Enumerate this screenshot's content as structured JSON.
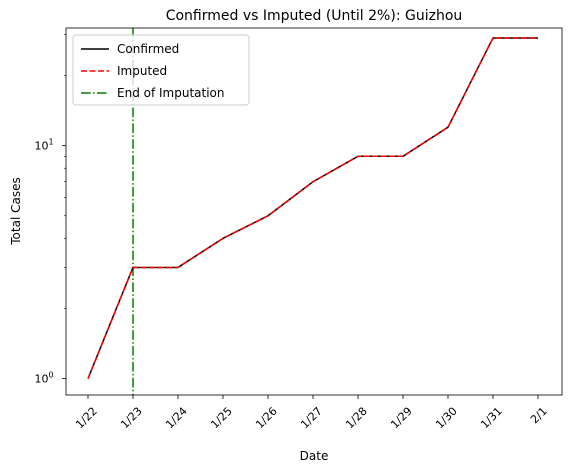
{
  "chart_data": {
    "type": "line",
    "title": "Confirmed vs Imputed (Until 2%): Guizhou",
    "xlabel": "Date",
    "ylabel": "Total Cases",
    "categories": [
      "1/22",
      "1/23",
      "1/24",
      "1/25",
      "1/26",
      "1/27",
      "1/28",
      "1/29",
      "1/30",
      "1/31",
      "2/1"
    ],
    "y_scale": "log",
    "ylim": [
      0.85,
      32
    ],
    "y_ticks": [
      {
        "value": 1,
        "base": "10",
        "exp": "0"
      },
      {
        "value": 10,
        "base": "10",
        "exp": "1"
      }
    ],
    "y_minor_ticks": [
      2,
      3,
      4,
      5,
      6,
      7,
      8,
      9,
      20,
      30
    ],
    "series": [
      {
        "name": "Confirmed",
        "color": "#000000",
        "style": "solid",
        "values": [
          1,
          3,
          3,
          4,
          5,
          7,
          9,
          9,
          12,
          29,
          29
        ]
      },
      {
        "name": "Imputed",
        "color": "#ff0000",
        "style": "dashed",
        "values": [
          1,
          3,
          3,
          4,
          5,
          7,
          9,
          9,
          12,
          29,
          29
        ]
      }
    ],
    "vertical_line": {
      "name": "End of Imputation",
      "x": "1/23",
      "color": "#008000",
      "style": "dashdot"
    },
    "grid": false,
    "legend_position": "top-left"
  }
}
